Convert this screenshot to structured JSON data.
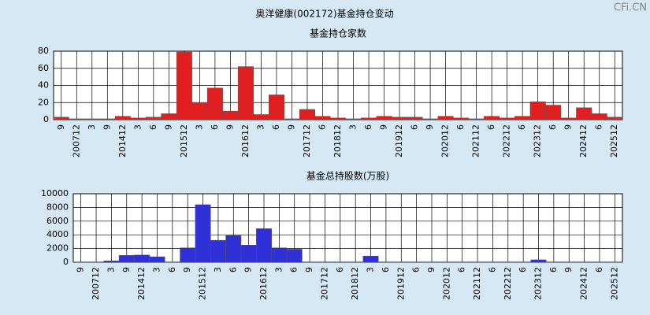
{
  "title": "奥洋健康(002172)基金持仓变动",
  "watermark": "CFi.CN",
  "chart_data": [
    {
      "type": "bar",
      "title": "基金持仓家数",
      "categories": [
        "9",
        "200712",
        "3",
        "9",
        "201412",
        "3",
        "6",
        "9",
        "201512",
        "3",
        "6",
        "9",
        "201612",
        "3",
        "6",
        "9",
        "201712",
        "6",
        "201812",
        "3",
        "6",
        "9",
        "201912",
        "6",
        "9",
        "202012",
        "6",
        "202112",
        "6",
        "202212",
        "6",
        "202312",
        "6",
        "9",
        "202412",
        "6",
        "202512"
      ],
      "values": [
        3,
        1,
        1,
        1,
        4,
        2,
        3,
        7,
        79,
        20,
        37,
        10,
        62,
        6,
        29,
        1,
        12,
        4,
        2,
        1,
        2,
        4,
        3,
        3,
        1,
        4,
        2,
        1,
        4,
        2,
        4,
        21,
        17,
        2,
        14,
        7,
        3
      ],
      "color": "#e02020",
      "ylim": [
        0,
        80
      ],
      "yticks": [
        0,
        20,
        40,
        60,
        80
      ],
      "grid": true
    },
    {
      "type": "bar",
      "title": "基金总持股数(万股)",
      "categories": [
        "9",
        "200712",
        "3",
        "9",
        "201412",
        "3",
        "6",
        "9",
        "201512",
        "3",
        "6",
        "9",
        "201612",
        "3",
        "6",
        "9",
        "201712",
        "6",
        "201812",
        "3",
        "6",
        "201912",
        "6",
        "9",
        "202012",
        "6",
        "202112",
        "6",
        "202212",
        "6",
        "202312",
        "6",
        "9",
        "202412",
        "6",
        "202512"
      ],
      "values": [
        50,
        50,
        200,
        1000,
        1050,
        800,
        50,
        2100,
        8400,
        3200,
        3900,
        2500,
        4900,
        2100,
        1900,
        50,
        50,
        50,
        50,
        900,
        50,
        50,
        50,
        50,
        50,
        50,
        50,
        50,
        50,
        50,
        350,
        50,
        50,
        50,
        50,
        50
      ],
      "color": "#3030d8",
      "ylim": [
        0,
        10000
      ],
      "yticks": [
        0,
        2000,
        4000,
        6000,
        8000,
        10000
      ],
      "grid": true
    }
  ]
}
